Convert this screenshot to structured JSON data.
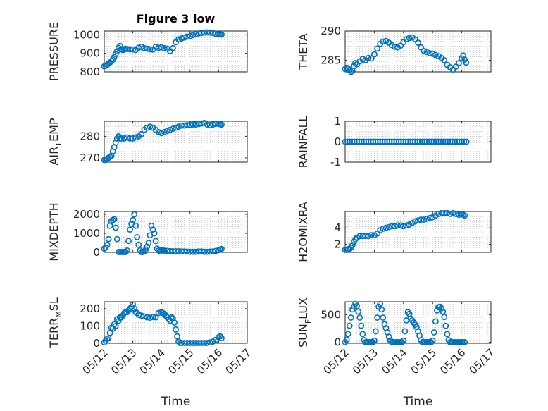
{
  "chart_data": [
    {
      "type": "scatter",
      "title": "Figure 3 low",
      "ylabel_main": "PRESSURE",
      "ylabel_sub": "",
      "ylabel_tail": "",
      "ylim": [
        800,
        1020
      ],
      "yticks": [
        800,
        900,
        1000
      ],
      "xlim": [
        0,
        5
      ],
      "xticks": [
        0,
        1,
        2,
        3,
        4,
        5
      ],
      "xticklabels": [
        "05/12",
        "05/13",
        "05/14",
        "05/15",
        "05/16",
        "05/17"
      ],
      "show_xticklabels": false,
      "xlabel": "",
      "x": [
        0.0,
        0.05,
        0.1,
        0.15,
        0.2,
        0.25,
        0.3,
        0.35,
        0.4,
        0.45,
        0.5,
        0.55,
        0.6,
        0.65,
        0.7,
        0.75,
        0.8,
        0.9,
        1.0,
        1.1,
        1.2,
        1.3,
        1.4,
        1.5,
        1.6,
        1.7,
        1.8,
        1.9,
        2.0,
        2.1,
        2.2,
        2.3,
        2.4,
        2.5,
        2.6,
        2.7,
        2.8,
        2.9,
        3.0,
        3.1,
        3.2,
        3.3,
        3.4,
        3.5,
        3.6,
        3.7,
        3.8,
        3.9,
        4.0,
        4.05,
        4.1
      ],
      "y": [
        830,
        833,
        838,
        845,
        850,
        858,
        866,
        880,
        896,
        912,
        930,
        940,
        922,
        918,
        920,
        925,
        923,
        922,
        921,
        918,
        930,
        935,
        928,
        925,
        922,
        920,
        935,
        930,
        932,
        928,
        925,
        912,
        928,
        960,
        975,
        980,
        985,
        990,
        992,
        998,
        1003,
        1007,
        1010,
        1012,
        1013,
        1012,
        1010,
        1005,
        1003,
        1002,
        1001
      ]
    },
    {
      "type": "scatter",
      "title": "",
      "ylabel_main": "THETA",
      "ylabel_sub": "",
      "ylabel_tail": "",
      "ylim": [
        283,
        290
      ],
      "yticks": [
        285,
        290
      ],
      "xlim": [
        0,
        5
      ],
      "xticks": [
        0,
        1,
        2,
        3,
        4,
        5
      ],
      "xticklabels": [
        "05/12",
        "05/13",
        "05/14",
        "05/15",
        "05/16",
        "05/17"
      ],
      "show_xticklabels": false,
      "xlabel": "",
      "x": [
        0.0,
        0.05,
        0.1,
        0.15,
        0.2,
        0.25,
        0.3,
        0.35,
        0.4,
        0.5,
        0.6,
        0.7,
        0.8,
        0.9,
        1.0,
        1.1,
        1.2,
        1.3,
        1.4,
        1.5,
        1.6,
        1.7,
        1.8,
        1.9,
        2.0,
        2.1,
        2.2,
        2.3,
        2.4,
        2.5,
        2.6,
        2.7,
        2.8,
        2.9,
        3.0,
        3.1,
        3.2,
        3.3,
        3.4,
        3.5,
        3.6,
        3.7,
        3.8,
        3.9,
        4.0,
        4.05,
        4.1,
        4.15
      ],
      "y": [
        283.5,
        283.7,
        283.6,
        283.3,
        283.0,
        283.2,
        284.0,
        284.5,
        284.3,
        284.8,
        285.2,
        285.0,
        285.4,
        285.3,
        286.0,
        287.0,
        287.8,
        288.2,
        288.3,
        288.0,
        287.6,
        287.3,
        287.2,
        287.5,
        288.1,
        288.6,
        288.8,
        288.9,
        288.6,
        288.0,
        287.2,
        286.6,
        286.4,
        286.2,
        286.1,
        285.9,
        285.7,
        285.4,
        285.0,
        284.2,
        283.8,
        283.4,
        283.9,
        284.5,
        285.3,
        285.8,
        285.1,
        284.6
      ]
    },
    {
      "type": "scatter",
      "title": "",
      "ylabel_main": "AIR",
      "ylabel_sub": "T",
      "ylabel_tail": "EMP",
      "ylim": [
        268,
        287
      ],
      "yticks": [
        270,
        280
      ],
      "xlim": [
        0,
        5
      ],
      "xticks": [
        0,
        1,
        2,
        3,
        4,
        5
      ],
      "xticklabels": [
        "05/12",
        "05/13",
        "05/14",
        "05/15",
        "05/16",
        "05/17"
      ],
      "show_xticklabels": false,
      "xlabel": "",
      "x": [
        0.0,
        0.05,
        0.1,
        0.15,
        0.2,
        0.25,
        0.3,
        0.35,
        0.4,
        0.45,
        0.5,
        0.55,
        0.6,
        0.7,
        0.8,
        0.9,
        1.0,
        1.1,
        1.2,
        1.3,
        1.4,
        1.5,
        1.6,
        1.7,
        1.8,
        1.9,
        2.0,
        2.1,
        2.2,
        2.3,
        2.4,
        2.5,
        2.6,
        2.7,
        2.8,
        2.9,
        3.0,
        3.1,
        3.2,
        3.3,
        3.4,
        3.5,
        3.6,
        3.7,
        3.8,
        3.9,
        4.0,
        4.05,
        4.1
      ],
      "y": [
        269,
        269,
        269.5,
        270,
        270.5,
        271,
        273,
        275,
        277,
        279,
        280,
        279,
        279,
        279,
        279.5,
        279,
        279,
        279.5,
        280,
        281,
        283,
        284,
        284.5,
        284,
        283,
        282,
        281.5,
        282,
        282.5,
        283,
        283.5,
        284,
        284.5,
        285,
        285,
        285.2,
        285.3,
        285.5,
        285.5,
        285.7,
        286,
        286.2,
        285.5,
        285.2,
        285.5,
        285.8,
        285.9,
        285.6,
        285.5
      ]
    },
    {
      "type": "scatter",
      "title": "",
      "ylabel_main": "RAINFALL",
      "ylabel_sub": "",
      "ylabel_tail": "",
      "ylim": [
        -1,
        1
      ],
      "yticks": [
        -1,
        0,
        1
      ],
      "xlim": [
        0,
        5
      ],
      "xticks": [
        0,
        1,
        2,
        3,
        4,
        5
      ],
      "xticklabels": [
        "05/12",
        "05/13",
        "05/14",
        "05/15",
        "05/16",
        "05/17"
      ],
      "show_xticklabels": false,
      "xlabel": "",
      "x": [
        0.0,
        0.08,
        0.16,
        0.24,
        0.32,
        0.4,
        0.48,
        0.56,
        0.64,
        0.72,
        0.8,
        0.88,
        0.96,
        1.04,
        1.12,
        1.2,
        1.28,
        1.36,
        1.44,
        1.52,
        1.6,
        1.68,
        1.76,
        1.84,
        1.92,
        2.0,
        2.08,
        2.16,
        2.24,
        2.32,
        2.4,
        2.48,
        2.56,
        2.64,
        2.72,
        2.8,
        2.88,
        2.96,
        3.04,
        3.12,
        3.2,
        3.28,
        3.36,
        3.44,
        3.52,
        3.6,
        3.68,
        3.76,
        3.84,
        3.92,
        4.0,
        4.08,
        4.16
      ],
      "y": [
        0,
        0,
        0,
        0,
        0,
        0,
        0,
        0,
        0,
        0,
        0,
        0,
        0,
        0,
        0,
        0,
        0,
        0,
        0,
        0,
        0,
        0,
        0,
        0,
        0,
        0,
        0,
        0,
        0,
        0,
        0,
        0,
        0,
        0,
        0,
        0,
        0,
        0,
        0,
        0,
        0,
        0,
        0,
        0,
        0,
        0,
        0,
        0,
        0,
        0,
        0,
        0,
        0
      ]
    },
    {
      "type": "scatter",
      "title": "",
      "ylabel_main": "MIXDEPTH",
      "ylabel_sub": "",
      "ylabel_tail": "",
      "ylim": [
        0,
        2150
      ],
      "yticks": [
        0,
        1000,
        2000
      ],
      "xlim": [
        0,
        5
      ],
      "xticks": [
        0,
        1,
        2,
        3,
        4,
        5
      ],
      "xticklabels": [
        "05/12",
        "05/13",
        "05/14",
        "05/15",
        "05/16",
        "05/17"
      ],
      "show_xticklabels": false,
      "xlabel": "",
      "x": [
        0.0,
        0.05,
        0.1,
        0.15,
        0.2,
        0.25,
        0.3,
        0.35,
        0.4,
        0.45,
        0.5,
        0.55,
        0.6,
        0.65,
        0.7,
        0.75,
        0.8,
        0.85,
        0.9,
        0.95,
        1.0,
        1.05,
        1.1,
        1.15,
        1.2,
        1.25,
        1.3,
        1.35,
        1.4,
        1.45,
        1.5,
        1.55,
        1.6,
        1.65,
        1.7,
        1.75,
        1.8,
        1.85,
        1.9,
        1.95,
        2.0,
        2.05,
        2.1,
        2.2,
        2.3,
        2.4,
        2.5,
        2.6,
        2.7,
        2.8,
        2.9,
        3.0,
        3.1,
        3.2,
        3.3,
        3.4,
        3.5,
        3.6,
        3.7,
        3.8,
        3.9,
        4.0,
        4.05,
        4.1
      ],
      "y": [
        200,
        250,
        400,
        700,
        1400,
        1650,
        1700,
        1750,
        1300,
        700,
        20,
        20,
        20,
        20,
        20,
        20,
        100,
        600,
        1200,
        1500,
        1700,
        2000,
        1400,
        800,
        400,
        100,
        20,
        20,
        50,
        150,
        300,
        500,
        900,
        1400,
        1200,
        1000,
        600,
        200,
        100,
        50,
        120,
        100,
        90,
        80,
        70,
        60,
        60,
        60,
        50,
        50,
        40,
        30,
        30,
        30,
        50,
        50,
        30,
        30,
        40,
        50,
        80,
        120,
        150,
        180
      ]
    },
    {
      "type": "scatter",
      "title": "",
      "ylabel_main": "H2OMIXRA",
      "ylabel_sub": "",
      "ylabel_tail": "",
      "ylim": [
        1,
        6
      ],
      "yticks": [
        2,
        4
      ],
      "xlim": [
        0,
        5
      ],
      "xticks": [
        0,
        1,
        2,
        3,
        4,
        5
      ],
      "xticklabels": [
        "05/12",
        "05/13",
        "05/14",
        "05/15",
        "05/16",
        "05/17"
      ],
      "show_xticklabels": false,
      "xlabel": "",
      "x": [
        0.0,
        0.05,
        0.1,
        0.15,
        0.2,
        0.25,
        0.3,
        0.35,
        0.4,
        0.5,
        0.6,
        0.7,
        0.8,
        0.9,
        1.0,
        1.1,
        1.2,
        1.3,
        1.4,
        1.5,
        1.6,
        1.7,
        1.8,
        1.9,
        2.0,
        2.1,
        2.2,
        2.3,
        2.4,
        2.5,
        2.6,
        2.7,
        2.8,
        2.9,
        3.0,
        3.1,
        3.2,
        3.3,
        3.4,
        3.5,
        3.6,
        3.7,
        3.8,
        3.9,
        4.0,
        4.05,
        4.1
      ],
      "y": [
        1.3,
        1.3,
        1.4,
        1.4,
        1.6,
        1.9,
        2.3,
        2.6,
        2.8,
        3.0,
        3.0,
        3.0,
        3.0,
        3.1,
        3.1,
        3.3,
        3.7,
        3.9,
        4.0,
        4.1,
        4.2,
        4.2,
        4.3,
        4.3,
        4.2,
        4.3,
        4.4,
        4.6,
        4.8,
        4.9,
        5.0,
        5.0,
        5.1,
        5.2,
        5.3,
        5.5,
        5.7,
        5.8,
        5.8,
        5.8,
        5.7,
        5.8,
        5.7,
        5.6,
        5.7,
        5.6,
        5.5
      ]
    },
    {
      "type": "scatter",
      "title": "",
      "ylabel_main": "TERR",
      "ylabel_sub": "M",
      "ylabel_tail": "SL",
      "ylim": [
        0,
        240
      ],
      "yticks": [
        0,
        100,
        200
      ],
      "xlim": [
        0,
        5
      ],
      "xticks": [
        0,
        1,
        2,
        3,
        4,
        5
      ],
      "xticklabels": [
        "05/12",
        "05/13",
        "05/14",
        "05/15",
        "05/16",
        "05/17"
      ],
      "show_xticklabels": true,
      "xlabel": "Time",
      "x": [
        0.0,
        0.05,
        0.1,
        0.15,
        0.2,
        0.25,
        0.3,
        0.35,
        0.4,
        0.45,
        0.5,
        0.55,
        0.6,
        0.65,
        0.7,
        0.75,
        0.8,
        0.85,
        0.9,
        0.95,
        1.0,
        1.05,
        1.1,
        1.15,
        1.2,
        1.3,
        1.4,
        1.5,
        1.6,
        1.7,
        1.8,
        1.9,
        2.0,
        2.05,
        2.1,
        2.15,
        2.2,
        2.25,
        2.3,
        2.35,
        2.4,
        2.45,
        2.5,
        2.55,
        2.6,
        2.65,
        2.7,
        2.8,
        2.9,
        3.0,
        3.1,
        3.2,
        3.3,
        3.4,
        3.5,
        3.6,
        3.7,
        3.8,
        3.9,
        4.0,
        4.05,
        4.1
      ],
      "y": [
        5,
        15,
        25,
        30,
        60,
        90,
        85,
        110,
        100,
        140,
        130,
        150,
        150,
        160,
        175,
        180,
        180,
        190,
        200,
        210,
        225,
        200,
        180,
        175,
        165,
        160,
        155,
        150,
        148,
        152,
        150,
        175,
        180,
        175,
        170,
        160,
        150,
        140,
        130,
        150,
        145,
        120,
        80,
        40,
        10,
        2,
        2,
        2,
        2,
        2,
        2,
        2,
        2,
        2,
        2,
        2,
        5,
        10,
        20,
        35,
        40,
        30
      ]
    },
    {
      "type": "scatter",
      "title": "",
      "ylabel_main": "SUN",
      "ylabel_sub": "F",
      "ylabel_tail": "LUX",
      "ylim": [
        -20,
        740
      ],
      "yticks": [
        0,
        500
      ],
      "xlim": [
        0,
        5
      ],
      "xticks": [
        0,
        1,
        2,
        3,
        4,
        5
      ],
      "xticklabels": [
        "05/12",
        "05/13",
        "05/14",
        "05/15",
        "05/16",
        "05/17"
      ],
      "show_xticklabels": true,
      "xlabel": "Time",
      "x": [
        0.0,
        0.05,
        0.1,
        0.15,
        0.2,
        0.25,
        0.3,
        0.35,
        0.4,
        0.45,
        0.5,
        0.55,
        0.6,
        0.65,
        0.7,
        0.75,
        0.8,
        0.85,
        0.9,
        0.95,
        1.0,
        1.05,
        1.1,
        1.15,
        1.2,
        1.25,
        1.3,
        1.35,
        1.4,
        1.45,
        1.5,
        1.55,
        1.6,
        1.65,
        1.7,
        1.75,
        1.8,
        1.85,
        1.9,
        1.95,
        2.0,
        2.05,
        2.1,
        2.15,
        2.2,
        2.25,
        2.3,
        2.35,
        2.4,
        2.45,
        2.5,
        2.55,
        2.6,
        2.65,
        2.7,
        2.75,
        2.8,
        2.85,
        2.9,
        2.95,
        3.0,
        3.05,
        3.1,
        3.15,
        3.2,
        3.25,
        3.3,
        3.35,
        3.4,
        3.45,
        3.5,
        3.55,
        3.6,
        3.65,
        3.7,
        3.75,
        3.8,
        3.85,
        3.9,
        3.95,
        4.0,
        4.05,
        4.1
      ],
      "y": [
        0,
        50,
        150,
        300,
        450,
        600,
        650,
        700,
        660,
        560,
        450,
        300,
        150,
        40,
        0,
        0,
        0,
        0,
        0,
        0,
        30,
        200,
        450,
        650,
        700,
        600,
        450,
        330,
        260,
        180,
        100,
        30,
        0,
        0,
        0,
        0,
        0,
        0,
        0,
        0,
        30,
        200,
        400,
        550,
        520,
        430,
        400,
        360,
        320,
        280,
        200,
        120,
        40,
        0,
        0,
        0,
        0,
        0,
        0,
        0,
        30,
        180,
        380,
        580,
        640,
        650,
        620,
        560,
        460,
        300,
        150,
        40,
        0,
        0,
        0,
        0,
        0,
        0,
        0,
        0,
        0,
        0,
        0
      ]
    }
  ]
}
